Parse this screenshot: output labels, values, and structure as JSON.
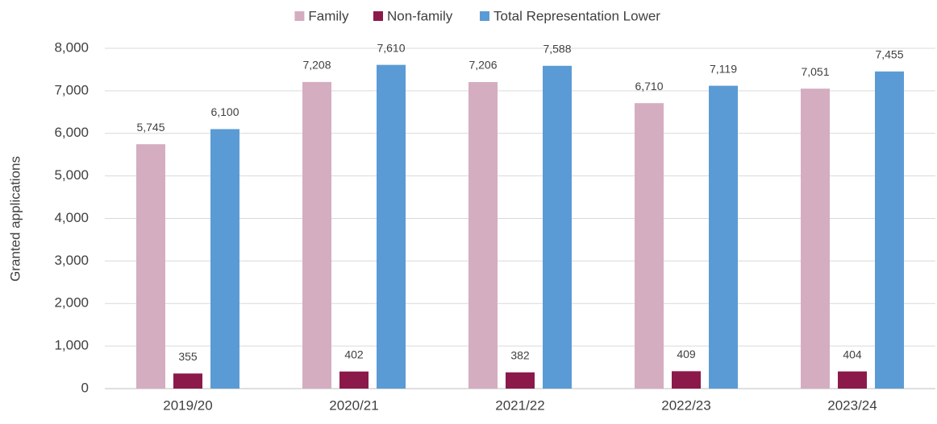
{
  "chart_data": {
    "type": "bar",
    "y_label": "Granted applications",
    "categories": [
      "2019/20",
      "2020/21",
      "2021/22",
      "2022/23",
      "2023/24"
    ],
    "series": [
      {
        "name": "Family",
        "color": "#d4adc0",
        "values": [
          5745,
          7208,
          7206,
          6710,
          7051
        ],
        "value_labels": [
          "5,745",
          "7,208",
          "7,206",
          "6,710",
          "7,051"
        ]
      },
      {
        "name": "Non-family",
        "color": "#8b1a4b",
        "values": [
          355,
          402,
          382,
          409,
          404
        ]
      },
      {
        "name": "Total Representation Lower",
        "color": "#5b9bd5",
        "values": [
          6100,
          7610,
          7588,
          7119,
          7455
        ],
        "value_labels": [
          "6,100",
          "7,610",
          "7,588",
          "7,119",
          "7,455"
        ]
      }
    ],
    "ylim": [
      0,
      8000
    ],
    "yticks": [
      0,
      {
        "value": 1000,
        "label": "1,000"
      },
      {
        "value": 2000,
        "label": "2,000"
      },
      {
        "value": 3000,
        "label": "3,000"
      },
      {
        "value": 4000,
        "label": "4,000"
      },
      {
        "value": 5000,
        "label": "5,000"
      },
      {
        "value": 6000,
        "label": "6,000"
      },
      {
        "value": 7000,
        "label": "7,000"
      },
      {
        "value": 8000,
        "label": "8,000"
      }
    ],
    "grid": true,
    "legend": "top"
  }
}
